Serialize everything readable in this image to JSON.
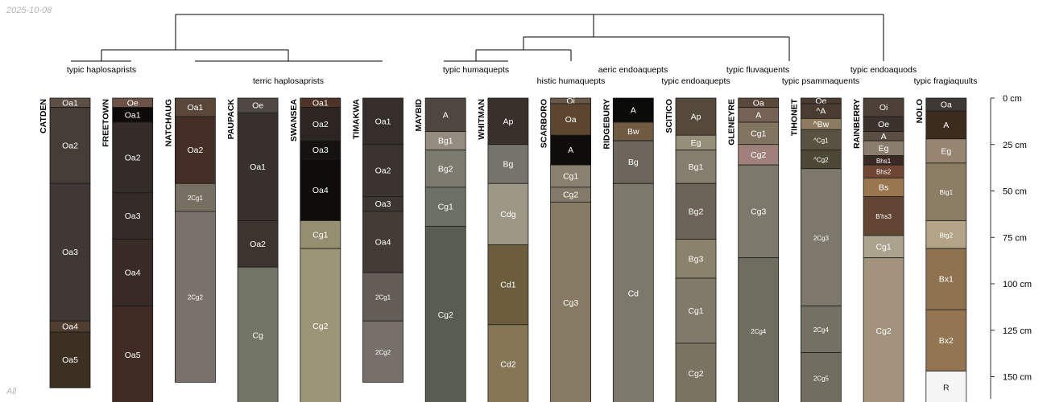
{
  "header": {
    "date": "2025-10-08",
    "footer": "All"
  },
  "chart_data": {
    "type": "soil-profile-sketch",
    "depth_axis": {
      "unit": "cm",
      "range": [
        0,
        162
      ],
      "ticks": [
        0,
        25,
        50,
        75,
        100,
        125,
        150
      ],
      "tick_labels": [
        "0 cm",
        "25 cm",
        "50 cm",
        "75 cm",
        "100 cm",
        "125 cm",
        "150 cm"
      ]
    },
    "groups": [
      {
        "label": "typic haplosaprists",
        "profiles": [
          0
        ]
      },
      {
        "label": "terric haplosaprists",
        "profiles": [
          1,
          2,
          3,
          4,
          5
        ]
      },
      {
        "label": "typic humaquepts",
        "profiles": [
          6
        ]
      },
      {
        "label": "histic humaquepts",
        "profiles": [
          7,
          8
        ]
      },
      {
        "label": "aeric endoaquepts",
        "profiles": [
          9
        ]
      },
      {
        "label": "typic endoaquepts",
        "profiles": [
          10
        ]
      },
      {
        "label": "typic fluvaquents",
        "profiles": [
          11
        ]
      },
      {
        "label": "typic psammaquents",
        "profiles": [
          12
        ]
      },
      {
        "label": "typic endoaquods",
        "profiles": [
          13
        ]
      },
      {
        "label": "typic fragiaquults",
        "profiles": [
          14
        ]
      }
    ],
    "profiles": [
      {
        "name": "CATDEN",
        "horizons": [
          {
            "name": "Oa1",
            "top": 0,
            "bottom": 5,
            "color": "#5e4f45"
          },
          {
            "name": "Oa2",
            "top": 5,
            "bottom": 46,
            "color": "#463d37"
          },
          {
            "name": "Oa3",
            "top": 46,
            "bottom": 120,
            "color": "#403834"
          },
          {
            "name": "Oa4",
            "top": 120,
            "bottom": 126,
            "color": "#4f3e30"
          },
          {
            "name": "Oa5",
            "top": 126,
            "bottom": 156,
            "color": "#3c3022"
          }
        ]
      },
      {
        "name": "FREETOWN",
        "horizons": [
          {
            "name": "Oe",
            "top": 0,
            "bottom": 5,
            "color": "#6d5247"
          },
          {
            "name": "Oa1",
            "top": 5,
            "bottom": 13,
            "color": "#0d0b0a"
          },
          {
            "name": "Oa2",
            "top": 13,
            "bottom": 51,
            "color": "#332c29"
          },
          {
            "name": "Oa3",
            "top": 51,
            "bottom": 76,
            "color": "#342b28"
          },
          {
            "name": "Oa4",
            "top": 76,
            "bottom": 112,
            "color": "#382b26"
          },
          {
            "name": "Oa5",
            "top": 112,
            "bottom": 165,
            "color": "#402c25"
          }
        ]
      },
      {
        "name": "NATCHAUG",
        "horizons": [
          {
            "name": "Oa1",
            "top": 0,
            "bottom": 10,
            "color": "#5a473a"
          },
          {
            "name": "Oa2",
            "top": 10,
            "bottom": 46,
            "color": "#452e25"
          },
          {
            "name": "2Cg1",
            "top": 46,
            "bottom": 61,
            "color": "#786f63"
          },
          {
            "name": "2Cg2",
            "top": 61,
            "bottom": 153,
            "color": "#7a716a"
          }
        ]
      },
      {
        "name": "PAUPACK",
        "horizons": [
          {
            "name": "Oe",
            "top": 0,
            "bottom": 8,
            "color": "#4f4843"
          },
          {
            "name": "Oa1",
            "top": 8,
            "bottom": 66,
            "color": "#38302c"
          },
          {
            "name": "Oa2",
            "top": 66,
            "bottom": 91,
            "color": "#3d3430"
          },
          {
            "name": "Cg",
            "top": 91,
            "bottom": 165,
            "color": "#727566"
          }
        ]
      },
      {
        "name": "SWANSEA",
        "horizons": [
          {
            "name": "Oa1",
            "top": 0,
            "bottom": 5,
            "color": "#4e3328"
          },
          {
            "name": "Oa2",
            "top": 5,
            "bottom": 23,
            "color": "#2d2522"
          },
          {
            "name": "Oa3",
            "top": 23,
            "bottom": 33,
            "color": "#141211"
          },
          {
            "name": "Oa4",
            "top": 33,
            "bottom": 66,
            "color": "#0e0c0b"
          },
          {
            "name": "Cg1",
            "top": 66,
            "bottom": 81,
            "color": "#958e71"
          },
          {
            "name": "Cg2",
            "top": 81,
            "bottom": 165,
            "color": "#9c9476"
          }
        ]
      },
      {
        "name": "TIMAKWA",
        "horizons": [
          {
            "name": "Oa1",
            "top": 0,
            "bottom": 25,
            "color": "#352e2b"
          },
          {
            "name": "Oa2",
            "top": 25,
            "bottom": 53,
            "color": "#3a3330"
          },
          {
            "name": "Oa3",
            "top": 53,
            "bottom": 61,
            "color": "#3d3531"
          },
          {
            "name": "Oa4",
            "top": 61,
            "bottom": 94,
            "color": "#433a35"
          },
          {
            "name": "2Cg1",
            "top": 94,
            "bottom": 120,
            "color": "#645d57"
          },
          {
            "name": "2Cg2",
            "top": 120,
            "bottom": 153,
            "color": "#77706a"
          }
        ]
      },
      {
        "name": "MAYBID",
        "horizons": [
          {
            "name": "A",
            "top": 0,
            "bottom": 18,
            "color": "#4f4640"
          },
          {
            "name": "Bg1",
            "top": 18,
            "bottom": 28,
            "color": "#948d7f"
          },
          {
            "name": "Bg2",
            "top": 28,
            "bottom": 48,
            "color": "#7c7b70"
          },
          {
            "name": "Cg1",
            "top": 48,
            "bottom": 69,
            "color": "#6d7064"
          },
          {
            "name": "Cg2",
            "top": 69,
            "bottom": 165,
            "color": "#595c51"
          }
        ]
      },
      {
        "name": "WHITMAN",
        "horizons": [
          {
            "name": "Ap",
            "top": 0,
            "bottom": 25,
            "color": "#3a302b"
          },
          {
            "name": "Bg",
            "top": 25,
            "bottom": 46,
            "color": "#76736a"
          },
          {
            "name": "Cdg",
            "top": 46,
            "bottom": 79,
            "color": "#9d9785"
          },
          {
            "name": "Cd1",
            "top": 79,
            "bottom": 122,
            "color": "#6c5d3d"
          },
          {
            "name": "Cd2",
            "top": 122,
            "bottom": 165,
            "color": "#867655"
          }
        ]
      },
      {
        "name": "SCARBORO",
        "horizons": [
          {
            "name": "Oi",
            "top": 0,
            "bottom": 3,
            "color": "#695847"
          },
          {
            "name": "Oa",
            "top": 3,
            "bottom": 20,
            "color": "#5d4630"
          },
          {
            "name": "A",
            "top": 20,
            "bottom": 36,
            "color": "#0f0d0c"
          },
          {
            "name": "Cg1",
            "top": 36,
            "bottom": 48,
            "color": "#8a806f"
          },
          {
            "name": "Cg2",
            "top": 48,
            "bottom": 56,
            "color": "#847a69"
          },
          {
            "name": "Cg3",
            "top": 56,
            "bottom": 165,
            "color": "#877a64"
          }
        ]
      },
      {
        "name": "RIDGEBURY",
        "horizons": [
          {
            "name": "A",
            "top": 0,
            "bottom": 13,
            "color": "#0b0b0a"
          },
          {
            "name": "Bw",
            "top": 13,
            "bottom": 23,
            "color": "#6f5a42"
          },
          {
            "name": "Bg",
            "top": 23,
            "bottom": 46,
            "color": "#6d665c"
          },
          {
            "name": "Cd",
            "top": 46,
            "bottom": 165,
            "color": "#7d786c"
          }
        ]
      },
      {
        "name": "SCITICO",
        "horizons": [
          {
            "name": "Ap",
            "top": 0,
            "bottom": 20,
            "color": "#55493b"
          },
          {
            "name": "Eg",
            "top": 20,
            "bottom": 28,
            "color": "#958e79"
          },
          {
            "name": "Bg1",
            "top": 28,
            "bottom": 46,
            "color": "#857d6e"
          },
          {
            "name": "Bg2",
            "top": 46,
            "bottom": 76,
            "color": "#6b6457"
          },
          {
            "name": "Bg3",
            "top": 76,
            "bottom": 97,
            "color": "#8b826d"
          },
          {
            "name": "Cg1",
            "top": 97,
            "bottom": 132,
            "color": "#81796a"
          },
          {
            "name": "Cg2",
            "top": 132,
            "bottom": 165,
            "color": "#7b7361"
          }
        ]
      },
      {
        "name": "GLENEYRE",
        "horizons": [
          {
            "name": "Oa",
            "top": 0,
            "bottom": 5,
            "color": "#5a4839"
          },
          {
            "name": "A",
            "top": 5,
            "bottom": 13,
            "color": "#756254"
          },
          {
            "name": "Cg1",
            "top": 13,
            "bottom": 25,
            "color": "#817562"
          },
          {
            "name": "Cg2",
            "top": 25,
            "bottom": 36,
            "color": "#a0807a"
          },
          {
            "name": "Cg3",
            "top": 36,
            "bottom": 86,
            "color": "#7d786c"
          },
          {
            "name": "2Cg4",
            "top": 86,
            "bottom": 165,
            "color": "#6f6c60"
          }
        ]
      },
      {
        "name": "TIHONET",
        "horizons": [
          {
            "name": "Oe",
            "top": 0,
            "bottom": 3,
            "color": "#4a3b30"
          },
          {
            "name": "^A",
            "top": 3,
            "bottom": 11,
            "color": "#4b3c31"
          },
          {
            "name": "^Bw",
            "top": 11,
            "bottom": 17,
            "color": "#8e7b5f"
          },
          {
            "name": "^Cg1",
            "top": 17,
            "bottom": 28,
            "color": "#5a5240"
          },
          {
            "name": "^Cg2",
            "top": 28,
            "bottom": 38,
            "color": "#4d4735"
          },
          {
            "name": "2Cg3",
            "top": 38,
            "bottom": 112,
            "color": "#7e786c"
          },
          {
            "name": "2Cg4",
            "top": 112,
            "bottom": 137,
            "color": "#747064"
          },
          {
            "name": "2Cg5",
            "top": 137,
            "bottom": 165,
            "color": "#706c60"
          }
        ]
      },
      {
        "name": "RAINBERRY",
        "horizons": [
          {
            "name": "Oi",
            "top": 0,
            "bottom": 10,
            "color": "#4c4038"
          },
          {
            "name": "Oe",
            "top": 10,
            "bottom": 18,
            "color": "#3b322d"
          },
          {
            "name": "A",
            "top": 18,
            "bottom": 23,
            "color": "#5b4d42"
          },
          {
            "name": "Eg",
            "top": 23,
            "bottom": 31,
            "color": "#8a7d6d"
          },
          {
            "name": "Bhs1",
            "top": 31,
            "bottom": 36,
            "color": "#3b2a24"
          },
          {
            "name": "Bhs2",
            "top": 36,
            "bottom": 43,
            "color": "#6f4534"
          },
          {
            "name": "Bs",
            "top": 43,
            "bottom": 53,
            "color": "#99764e"
          },
          {
            "name": "B'hs3",
            "top": 53,
            "bottom": 74,
            "color": "#614431"
          },
          {
            "name": "Cg1",
            "top": 74,
            "bottom": 86,
            "color": "#aba38e"
          },
          {
            "name": "Cg2",
            "top": 86,
            "bottom": 165,
            "color": "#a3937d"
          }
        ]
      },
      {
        "name": "NOLO",
        "horizons": [
          {
            "name": "Oa",
            "top": 0,
            "bottom": 7,
            "color": "#3d3834"
          },
          {
            "name": "A",
            "top": 7,
            "bottom": 22,
            "color": "#3c2c1e"
          },
          {
            "name": "Eg",
            "top": 22,
            "bottom": 35,
            "color": "#958571"
          },
          {
            "name": "Btg1",
            "top": 35,
            "bottom": 66,
            "color": "#8b7c64"
          },
          {
            "name": "Btg2",
            "top": 66,
            "bottom": 81,
            "color": "#b3a488"
          },
          {
            "name": "Bx1",
            "top": 81,
            "bottom": 114,
            "color": "#8f7351"
          },
          {
            "name": "Bx2",
            "top": 114,
            "bottom": 147,
            "color": "#937552"
          },
          {
            "name": "R",
            "top": 147,
            "bottom": 165,
            "color": "#f5f5f5"
          }
        ]
      }
    ]
  }
}
